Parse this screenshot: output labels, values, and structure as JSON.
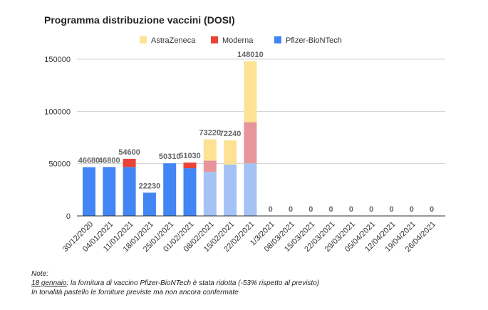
{
  "chart_data": {
    "type": "bar",
    "stacked": true,
    "title": "Programma distribuzione vaccini (DOSI)",
    "xlabel": "",
    "ylabel": "",
    "ylim": [
      0,
      150000
    ],
    "yticks": [
      0,
      50000,
      100000,
      150000
    ],
    "ytick_labels": [
      "0",
      "50000",
      "100000",
      "150000"
    ],
    "grid": true,
    "legend_position": "top",
    "categories": [
      "30/12/2020",
      "04/01/2021",
      "11/01/2021",
      "18/01/2021",
      "25/01/2021",
      "01/02/2021",
      "08/02/2021",
      "15/02/2021",
      "22/02/2021",
      "1/3/2021",
      "08/03/2021",
      "15/03/2021",
      "22/03/2021",
      "29/03/2021",
      "05/04/2021",
      "12/04/2021",
      "19/04/2021",
      "26/04/2021"
    ],
    "series": [
      {
        "name": "Pfizer-BioNTech",
        "color": "#4285f4",
        "pastel": "#a4c2f4",
        "values": [
          46680,
          46800,
          46800,
          22230,
          50310,
          45630,
          42120,
          49140,
          50310,
          0,
          0,
          0,
          0,
          0,
          0,
          0,
          0,
          0
        ]
      },
      {
        "name": "Moderna",
        "color": "#ea4335",
        "pastel": "#e6969b",
        "values": [
          0,
          0,
          7800,
          0,
          0,
          5400,
          10800,
          0,
          39400,
          0,
          0,
          0,
          0,
          0,
          0,
          0,
          0,
          0
        ]
      },
      {
        "name": "AstraZeneca",
        "color": "#fde293",
        "pastel": "#fde293",
        "values": [
          0,
          0,
          0,
          0,
          0,
          0,
          20300,
          23100,
          58300,
          0,
          0,
          0,
          0,
          0,
          0,
          0,
          0,
          0
        ]
      }
    ],
    "unconfirmed": [
      false,
      false,
      false,
      false,
      false,
      false,
      true,
      true,
      true,
      false,
      false,
      false,
      false,
      false,
      false,
      false,
      false,
      false
    ],
    "total_labels": [
      "46680",
      "46800",
      "54600",
      "22230",
      "50310",
      "51030",
      "73220",
      "72240",
      "148010",
      "0",
      "0",
      "0",
      "0",
      "0",
      "0",
      "0",
      "0",
      "0"
    ],
    "legend_order": [
      "AstraZeneca",
      "Moderna",
      "Pfizer-BioNTech"
    ]
  },
  "notes": {
    "heading": "Note:",
    "line1_date": "18 gennaio",
    "line1_text": ": la fornitura di vaccino Pfizer-BioNTech è stata ridotta (-53% rispetto al previsto)",
    "line2": "In tonalità pastello le forniture previste ma non ancora confermate"
  }
}
